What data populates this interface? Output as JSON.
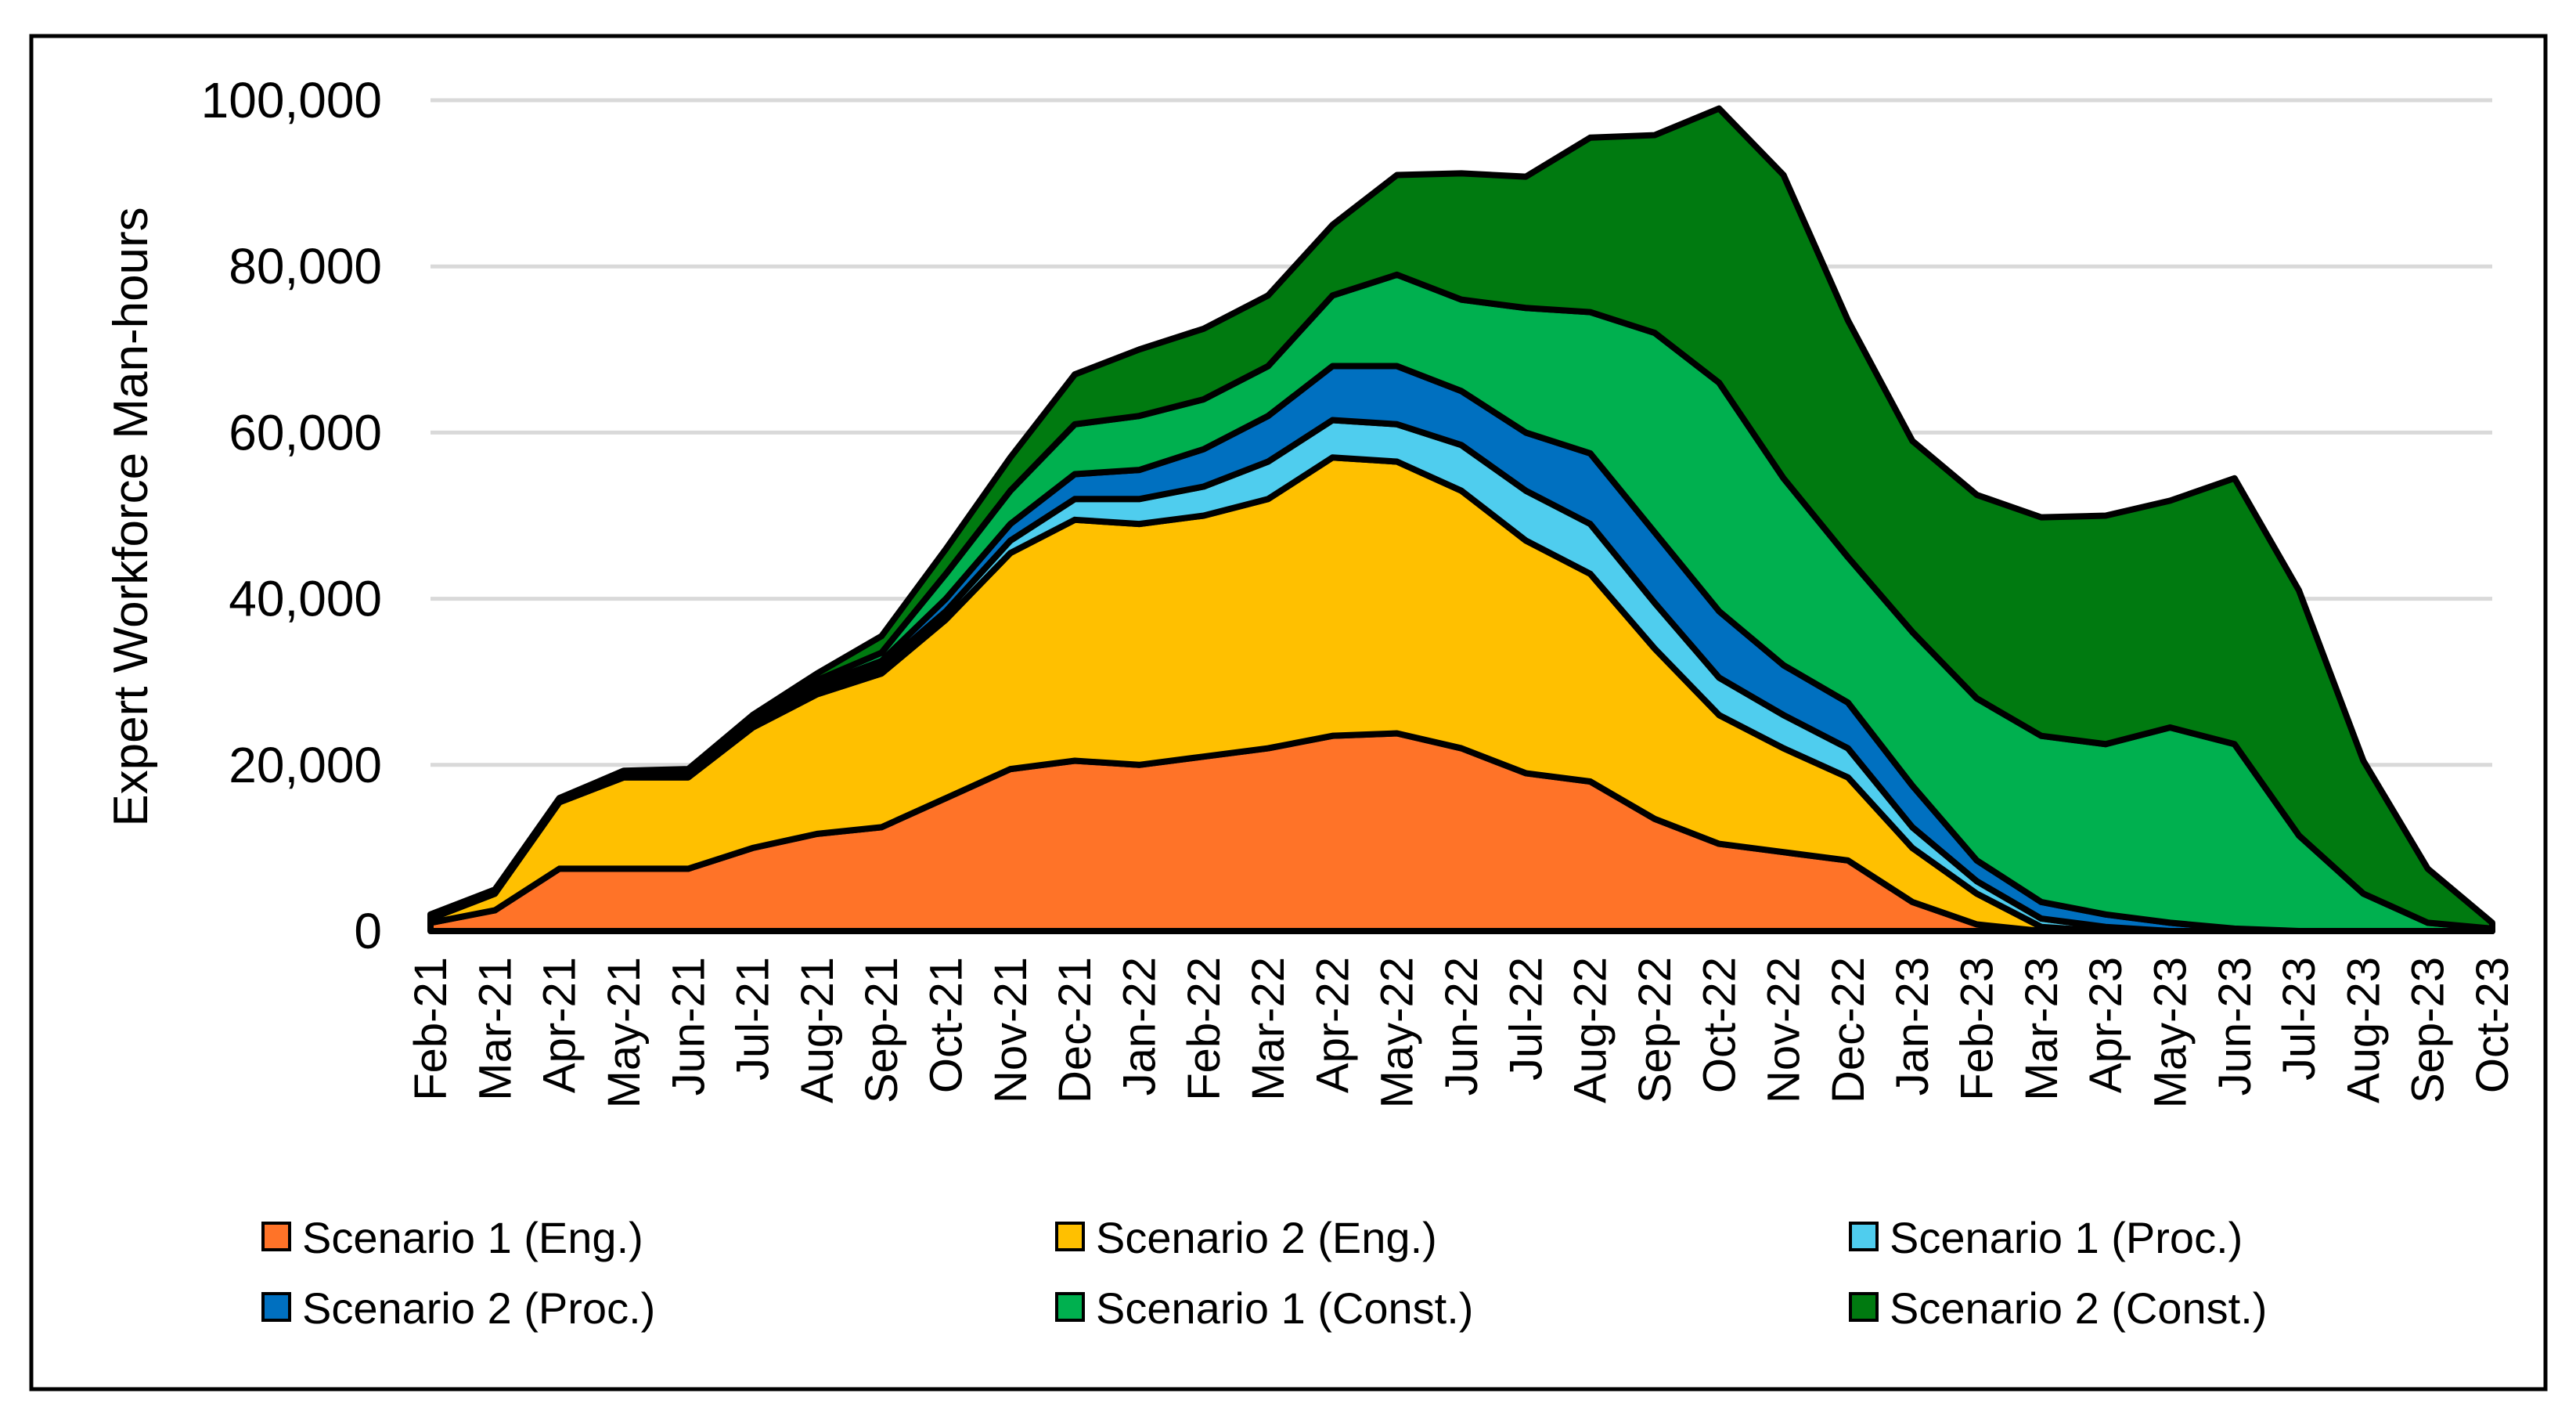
{
  "chart_data": {
    "type": "area",
    "stacked": true,
    "title": "",
    "xlabel": "",
    "ylabel": "Expert Workforce Man-hours",
    "ylim": [
      0,
      100000
    ],
    "yticks": [
      0,
      20000,
      40000,
      60000,
      80000,
      100000
    ],
    "ytick_labels": [
      "0",
      "20,000",
      "40,000",
      "60,000",
      "80,000",
      "100,000"
    ],
    "grid": true,
    "legend_position": "bottom",
    "categories": [
      "Feb-21",
      "Mar-21",
      "Apr-21",
      "May-21",
      "Jun-21",
      "Jul-21",
      "Aug-21",
      "Sep-21",
      "Oct-21",
      "Nov-21",
      "Dec-21",
      "Jan-22",
      "Feb-22",
      "Mar-22",
      "Apr-22",
      "May-22",
      "Jun-22",
      "Jul-22",
      "Aug-22",
      "Sep-22",
      "Oct-22",
      "Nov-22",
      "Dec-22",
      "Jan-23",
      "Feb-23",
      "Mar-23",
      "Apr-23",
      "May-23",
      "Jun-23",
      "Jul-23",
      "Aug-23",
      "Sep-23",
      "Oct-23"
    ],
    "series": [
      {
        "name": "Scenario 1 (Eng.)",
        "color": "#FF7328",
        "values": [
          1000,
          2500,
          7500,
          7500,
          7500,
          10000,
          11700,
          12500,
          16000,
          19500,
          20500,
          20000,
          21000,
          22000,
          23500,
          23800,
          22000,
          19000,
          18000,
          13500,
          10500,
          9500,
          8500,
          3500,
          800,
          0,
          0,
          0,
          0,
          0,
          0,
          0,
          0
        ]
      },
      {
        "name": "Scenario 2 (Eng.)",
        "color": "#FFC000",
        "values": [
          500,
          2000,
          8000,
          11000,
          11000,
          14500,
          16800,
          18500,
          21500,
          26000,
          29000,
          29000,
          29000,
          30000,
          33500,
          32700,
          31000,
          28000,
          25000,
          20500,
          15500,
          12500,
          10000,
          6500,
          3700,
          500,
          0,
          0,
          0,
          0,
          0,
          0,
          0
        ]
      },
      {
        "name": "Scenario 1 (Proc.)",
        "color": "#4FCDEE",
        "values": [
          100,
          100,
          100,
          200,
          200,
          300,
          500,
          800,
          1000,
          1500,
          2500,
          3000,
          3500,
          4500,
          4500,
          4500,
          5500,
          6000,
          6000,
          5500,
          4500,
          4000,
          3500,
          2500,
          1500,
          1000,
          500,
          0,
          0,
          0,
          0,
          0,
          0
        ]
      },
      {
        "name": "Scenario 2 (Proc.)",
        "color": "#0070C0",
        "values": [
          100,
          100,
          100,
          200,
          200,
          300,
          600,
          700,
          1500,
          2000,
          3000,
          3500,
          4500,
          5500,
          6500,
          7000,
          6500,
          7000,
          8500,
          8500,
          8000,
          6000,
          5500,
          5000,
          2500,
          2000,
          1500,
          1000,
          300,
          0,
          0,
          0,
          0
        ]
      },
      {
        "name": "Scenario 1 (Const.)",
        "color": "#00B04F",
        "values": [
          100,
          100,
          100,
          200,
          200,
          400,
          600,
          1000,
          3000,
          4000,
          6000,
          6500,
          6000,
          6000,
          8500,
          11000,
          11000,
          15000,
          17000,
          24000,
          27500,
          22500,
          17500,
          18500,
          19500,
          20000,
          20500,
          23500,
          22200,
          11500,
          4500,
          1000,
          300
        ]
      },
      {
        "name": "Scenario 2 (Const.)",
        "color": "#007A10",
        "values": [
          200,
          200,
          200,
          200,
          400,
          500,
          800,
          2000,
          3000,
          4000,
          6000,
          8000,
          8500,
          8500,
          8500,
          12000,
          15200,
          15800,
          21000,
          23800,
          33000,
          36500,
          28500,
          23000,
          24500,
          26300,
          27500,
          27300,
          32000,
          29500,
          16000,
          6500,
          700
        ]
      }
    ]
  }
}
